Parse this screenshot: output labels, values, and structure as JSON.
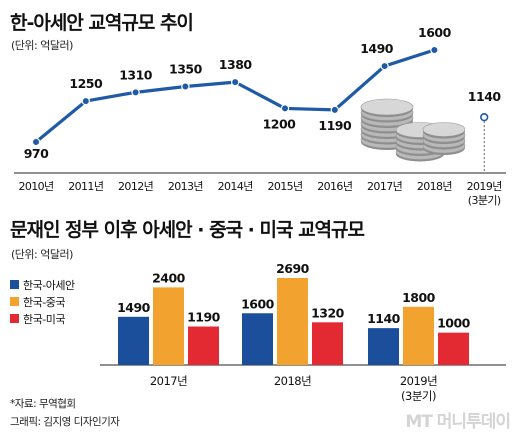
{
  "colors": {
    "line": "#1f5aa6",
    "korea_asean": "#1b4f9c",
    "korea_china": "#f2a22e",
    "korea_usa": "#e32a33"
  },
  "footer": {
    "source": "*자료: 무역협회",
    "credit": "그래픽: 김지영 디자인기자"
  },
  "watermark": "MT 머니투데이",
  "chart_data": [
    {
      "type": "line",
      "title": "한-아세안 교역규모 추이",
      "unit": "(단위: 억달러)",
      "x": [
        "2010년",
        "2011년",
        "2012년",
        "2013년",
        "2014년",
        "2015년",
        "2016년",
        "2017년",
        "2018년",
        "2019년"
      ],
      "x_sub": [
        "",
        "",
        "",
        "",
        "",
        "",
        "",
        "",
        "",
        "(3분기)"
      ],
      "series": [
        {
          "values": [
            970,
            1250,
            1310,
            1350,
            1380,
            1200,
            1190,
            1490,
            1600,
            1140
          ]
        }
      ],
      "data_labels": [
        "970",
        "1250",
        "1310",
        "1350",
        "1380",
        "1200",
        "1190",
        "1490",
        "1600",
        "1140"
      ],
      "note": "last point (2019 3Q) shown as hollow marker connected by dotted line to axis",
      "ylim": [
        900,
        1650
      ],
      "grid": false
    },
    {
      "type": "bar",
      "title": "문재인 정부 이후 아세안 · 중국 · 미국 교역규모",
      "unit": "(단위: 억달러)",
      "categories": [
        "2017년",
        "2018년",
        "2019년"
      ],
      "categories_sub": [
        "",
        "",
        "(3분기)"
      ],
      "series": [
        {
          "name": "한국-아세안",
          "values": [
            1490,
            1600,
            1140
          ]
        },
        {
          "name": "한국-중국",
          "values": [
            2400,
            2690,
            1800
          ]
        },
        {
          "name": "한국-미국",
          "values": [
            1190,
            1320,
            1000
          ]
        }
      ],
      "data_labels": [
        [
          "1490",
          "2400",
          "1190"
        ],
        [
          "1600",
          "2690",
          "1320"
        ],
        [
          "1140",
          "1800",
          "1000"
        ]
      ],
      "legend": "left",
      "ylim": [
        0,
        2800
      ],
      "grid": false
    }
  ]
}
